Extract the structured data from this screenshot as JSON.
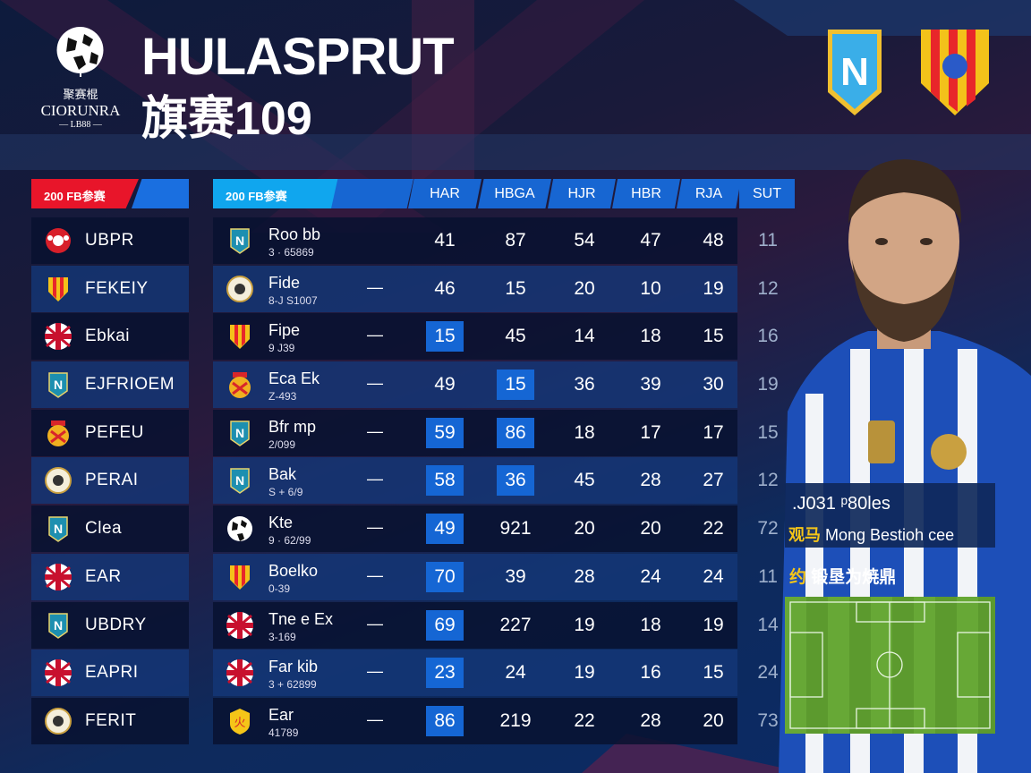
{
  "header": {
    "logo": {
      "cn": "聚赛棍",
      "en": "CIORUNRA",
      "year": "— LB88 —"
    },
    "title_line1": "HULASPRUT",
    "title_line2": "旗赛109",
    "badges": [
      "n-shield-badge",
      "red-yellow-shield-badge"
    ]
  },
  "left_panel": {
    "header": "200 FB参赛",
    "items": [
      {
        "icon": "red-ball-crest",
        "name": "UBPR"
      },
      {
        "icon": "red-yellow-shield",
        "name": "FEKEIY"
      },
      {
        "icon": "union-jack-flag",
        "name": "Ebkai"
      },
      {
        "icon": "n-shield",
        "name": "EJFRIOEM"
      },
      {
        "icon": "crown-crest",
        "name": "PEFEU"
      },
      {
        "icon": "round-crest",
        "name": "PERAI"
      },
      {
        "icon": "n-shield",
        "name": "Clea"
      },
      {
        "icon": "union-jack-flag",
        "name": "EAR"
      },
      {
        "icon": "n-shield",
        "name": "UBDRY"
      },
      {
        "icon": "union-jack-flag",
        "name": "EAPRI"
      },
      {
        "icon": "round-crest",
        "name": "FERIT"
      }
    ]
  },
  "table": {
    "group_header": "200 FB参赛",
    "columns": [
      "HAR",
      "HBGA",
      "HJR",
      "HBR",
      "RJA",
      "SUT"
    ],
    "rows": [
      {
        "icon": "n-shield",
        "name": "Roo bb",
        "sub": "3 · 65869",
        "dash": "",
        "values": [
          "41",
          "87",
          "54",
          "47",
          "48",
          "11"
        ],
        "highlight": []
      },
      {
        "icon": "round-crest",
        "name": "Fide",
        "sub": "8-J S1007",
        "dash": "—",
        "values": [
          "46",
          "15",
          "20",
          "10",
          "19",
          "12"
        ],
        "highlight": []
      },
      {
        "icon": "red-yellow-shield",
        "name": "Fipe",
        "sub": "9 J39",
        "dash": "—",
        "values": [
          "15",
          "45",
          "14",
          "18",
          "15",
          "16"
        ],
        "highlight": [
          0
        ]
      },
      {
        "icon": "crown-crest",
        "name": "Eca Ek",
        "sub": "Z-493",
        "dash": "—",
        "values": [
          "49",
          "15",
          "36",
          "39",
          "30",
          "19"
        ],
        "highlight": [
          1
        ]
      },
      {
        "icon": "n-shield",
        "name": "Bfr mp",
        "sub": "2/099",
        "dash": "—",
        "values": [
          "59",
          "86",
          "18",
          "17",
          "17",
          "15"
        ],
        "highlight": [
          0,
          1
        ]
      },
      {
        "icon": "n-shield",
        "name": "Bak",
        "sub": "S + 6/9",
        "dash": "—",
        "values": [
          "58",
          "36",
          "45",
          "28",
          "27",
          "12"
        ],
        "highlight": [
          0,
          1
        ]
      },
      {
        "icon": "ball-crest",
        "name": "Kte",
        "sub": "9 · 62/99",
        "dash": "—",
        "values": [
          "49",
          "921",
          "20",
          "20",
          "22",
          "72"
        ],
        "highlight": [
          0
        ]
      },
      {
        "icon": "red-yellow-shield",
        "name": "Boelko",
        "sub": "0-39",
        "dash": "—",
        "values": [
          "70",
          "39",
          "28",
          "24",
          "24",
          "11"
        ],
        "highlight": [
          0
        ]
      },
      {
        "icon": "union-jack-flag",
        "name": "Tne e Ex",
        "sub": "3-169",
        "dash": "—",
        "values": [
          "69",
          "227",
          "19",
          "18",
          "19",
          "14"
        ],
        "highlight": [
          0
        ]
      },
      {
        "icon": "union-jack-flag",
        "name": "Far kib",
        "sub": "3 + 62899",
        "dash": "—",
        "values": [
          "23",
          "24",
          "19",
          "16",
          "15",
          "24"
        ],
        "highlight": [
          0
        ]
      },
      {
        "icon": "yellow-shield",
        "name": "Ear",
        "sub": "41789",
        "dash": "—",
        "values": [
          "86",
          "219",
          "22",
          "28",
          "20",
          "73"
        ],
        "highlight": [
          0
        ]
      }
    ]
  },
  "player_card": {
    "line1": ".J031 ᵖ80les",
    "line2_cn": "观马",
    "line2": "Mong Bestioh cee",
    "line3_cn_icon": "约",
    "line3": "锻垦为焼鼎"
  },
  "colors": {
    "accent_blue": "#1566d4",
    "accent_red": "#e8152a",
    "header_cyan": "#10a6ee",
    "gold": "#f5c518"
  }
}
